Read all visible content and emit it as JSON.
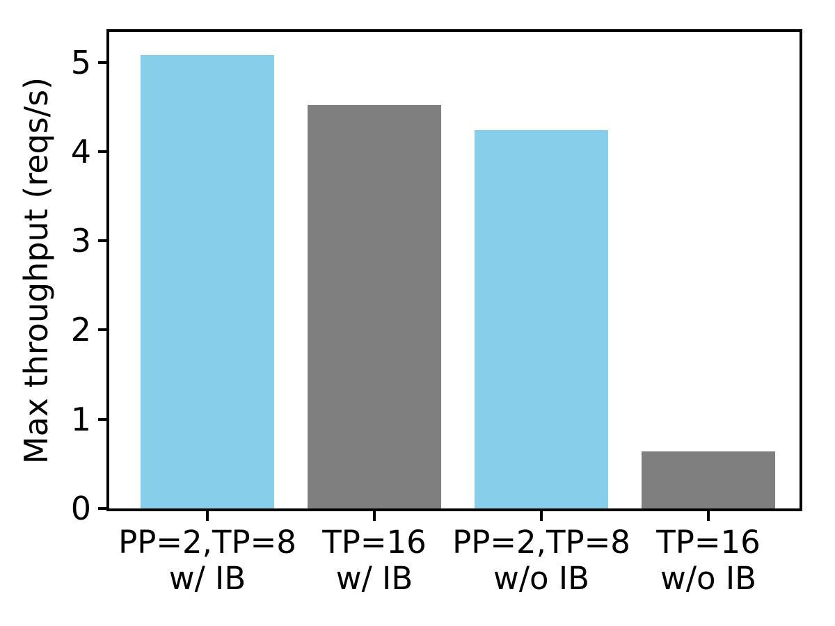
{
  "chart_data": {
    "type": "bar",
    "title": "",
    "xlabel": "",
    "ylabel": "Max throughput (reqs/s)",
    "categories": [
      {
        "line1": "PP=2,TP=8",
        "line2": "w/ IB"
      },
      {
        "line1": "TP=16",
        "line2": "w/ IB"
      },
      {
        "line1": "PP=2,TP=8",
        "line2": "w/o IB"
      },
      {
        "line1": "TP=16",
        "line2": "w/o IB"
      }
    ],
    "values": [
      5.08,
      4.52,
      4.24,
      0.64
    ],
    "bar_colors": [
      "#87ceeb",
      "#7f7f7f",
      "#87ceeb",
      "#7f7f7f"
    ],
    "yticks": [
      "0",
      "1",
      "2",
      "3",
      "4",
      "5"
    ],
    "ylim": [
      0,
      5.34
    ],
    "grid": false,
    "legend_position": "none",
    "colors": {
      "skyblue_bar": "#87ceeb",
      "gray_bar": "#7f7f7f",
      "axis": "#000000",
      "background": "#ffffff"
    }
  }
}
